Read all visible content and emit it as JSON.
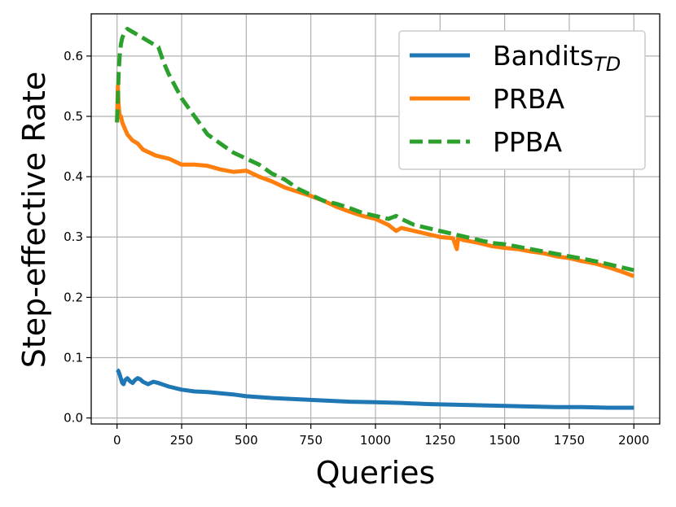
{
  "chart_data": {
    "type": "line",
    "title": "",
    "xlabel": "Queries",
    "ylabel": "Step-effective Rate",
    "xlim": [
      -100,
      2100
    ],
    "ylim": [
      -0.01,
      0.67
    ],
    "xticks": [
      0,
      250,
      500,
      750,
      1000,
      1250,
      1500,
      1750,
      2000
    ],
    "yticks": [
      0.0,
      0.1,
      0.2,
      0.3,
      0.4,
      0.5,
      0.6
    ],
    "xtick_labels": [
      "0",
      "250",
      "500",
      "750",
      "1000",
      "1250",
      "1500",
      "1750",
      "2000"
    ],
    "ytick_labels": [
      "0.0",
      "0.1",
      "0.2",
      "0.3",
      "0.4",
      "0.5",
      "0.6"
    ],
    "grid": true,
    "legend_position": "top-right",
    "series": [
      {
        "name": "Bandits",
        "name_subscript": "TD",
        "color": "#1f77b4",
        "dash": "solid",
        "x": [
          0,
          5,
          10,
          15,
          20,
          25,
          30,
          40,
          50,
          60,
          70,
          80,
          90,
          100,
          120,
          140,
          160,
          180,
          200,
          250,
          300,
          350,
          400,
          450,
          500,
          600,
          700,
          800,
          900,
          1000,
          1100,
          1200,
          1300,
          1400,
          1500,
          1600,
          1700,
          1800,
          1900,
          2000
        ],
        "y": [
          0.08,
          0.078,
          0.072,
          0.065,
          0.058,
          0.056,
          0.062,
          0.066,
          0.061,
          0.058,
          0.063,
          0.066,
          0.064,
          0.06,
          0.056,
          0.06,
          0.058,
          0.055,
          0.052,
          0.047,
          0.044,
          0.043,
          0.041,
          0.039,
          0.036,
          0.033,
          0.031,
          0.029,
          0.027,
          0.026,
          0.025,
          0.023,
          0.022,
          0.021,
          0.02,
          0.019,
          0.018,
          0.018,
          0.017,
          0.017
        ]
      },
      {
        "name": "PRBA",
        "color": "#ff7f0e",
        "dash": "solid",
        "x": [
          0,
          3,
          6,
          10,
          15,
          20,
          30,
          40,
          60,
          80,
          100,
          150,
          200,
          250,
          300,
          350,
          400,
          450,
          500,
          550,
          600,
          650,
          700,
          750,
          800,
          850,
          900,
          950,
          1000,
          1050,
          1080,
          1100,
          1150,
          1200,
          1250,
          1300,
          1315,
          1320,
          1340,
          1400,
          1450,
          1500,
          1550,
          1600,
          1650,
          1700,
          1750,
          1800,
          1850,
          1900,
          1950,
          2000
        ],
        "y": [
          0.49,
          0.55,
          0.52,
          0.5,
          0.5,
          0.49,
          0.48,
          0.47,
          0.46,
          0.455,
          0.445,
          0.435,
          0.43,
          0.42,
          0.42,
          0.418,
          0.412,
          0.408,
          0.41,
          0.4,
          0.392,
          0.382,
          0.375,
          0.368,
          0.36,
          0.35,
          0.342,
          0.335,
          0.33,
          0.32,
          0.31,
          0.315,
          0.31,
          0.305,
          0.3,
          0.298,
          0.28,
          0.298,
          0.295,
          0.29,
          0.285,
          0.282,
          0.28,
          0.276,
          0.273,
          0.268,
          0.265,
          0.26,
          0.256,
          0.25,
          0.243,
          0.235
        ]
      },
      {
        "name": "PPBA",
        "color": "#2ca02c",
        "dash": "dashed",
        "x": [
          0,
          3,
          6,
          10,
          15,
          20,
          30,
          40,
          60,
          80,
          100,
          120,
          140,
          160,
          180,
          200,
          250,
          300,
          350,
          400,
          450,
          500,
          550,
          600,
          650,
          700,
          750,
          800,
          850,
          900,
          950,
          1000,
          1050,
          1080,
          1100,
          1150,
          1200,
          1250,
          1300,
          1350,
          1400,
          1450,
          1500,
          1550,
          1600,
          1650,
          1700,
          1750,
          1800,
          1850,
          1900,
          1950,
          2000
        ],
        "y": [
          0.49,
          0.53,
          0.57,
          0.6,
          0.62,
          0.63,
          0.64,
          0.645,
          0.64,
          0.635,
          0.63,
          0.625,
          0.62,
          0.615,
          0.59,
          0.57,
          0.53,
          0.5,
          0.47,
          0.455,
          0.44,
          0.43,
          0.42,
          0.405,
          0.395,
          0.38,
          0.37,
          0.36,
          0.355,
          0.348,
          0.34,
          0.335,
          0.33,
          0.335,
          0.33,
          0.32,
          0.315,
          0.31,
          0.305,
          0.3,
          0.295,
          0.29,
          0.288,
          0.284,
          0.28,
          0.276,
          0.272,
          0.268,
          0.264,
          0.26,
          0.255,
          0.25,
          0.245
        ]
      }
    ]
  }
}
